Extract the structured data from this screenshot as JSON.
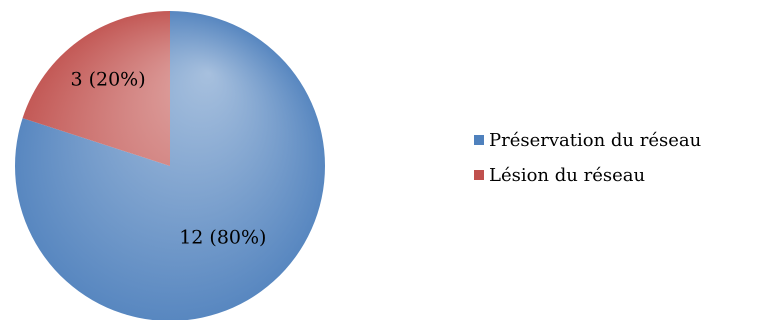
{
  "chart_data": {
    "type": "pie",
    "title": "",
    "slices": [
      {
        "name": "Préservation du réseau",
        "value": 12,
        "label": "12 (80%)",
        "color": "#4f81bd"
      },
      {
        "name": "Lésion du réseau",
        "value": 3,
        "label": "3 (20%)",
        "color": "#c0504d"
      }
    ],
    "legend_position": "right",
    "start_angle_deg": 0,
    "direction": "clockwise"
  },
  "legend": {
    "items": [
      {
        "label": "Préservation du réseau",
        "color": "#4f81bd"
      },
      {
        "label": "Lésion du réseau",
        "color": "#c0504d"
      }
    ]
  }
}
